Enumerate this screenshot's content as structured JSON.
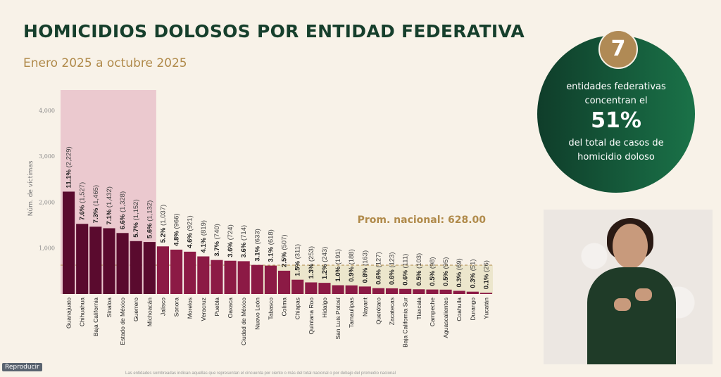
{
  "header": {
    "title": "HOMICIDIOS DOLOSOS POR ENTIDAD FEDERATIVA",
    "subtitle": "Enero 2025 a octubre 2025"
  },
  "chart_data": {
    "type": "bar",
    "ylabel": "Núm. de víctimas",
    "ylim": [
      0,
      4000
    ],
    "yticks": [
      "1,000",
      "2,000",
      "3,000",
      "4,000"
    ],
    "ytick_values": [
      1000,
      2000,
      3000,
      4000
    ],
    "average": {
      "label": "Prom. nacional: 628.00",
      "value": 628
    },
    "highlight_count": 7,
    "categories": [
      "Guanajuato",
      "Chihuahua",
      "Baja California",
      "Sinaloa",
      "Estado de México",
      "Guerrero",
      "Michoacán",
      "Jalisco",
      "Sonora",
      "Morelos",
      "Veracruz",
      "Puebla",
      "Oaxaca",
      "Ciudad de México",
      "Nuevo León",
      "Tabasco",
      "Colima",
      "Chiapas",
      "Quintana Roo",
      "Hidalgo",
      "San Luis Potosí",
      "Tamaulipas",
      "Nayarit",
      "Querétaro",
      "Zacatecas",
      "Baja California Sur",
      "Tlaxcala",
      "Campeche",
      "Aguascalientes",
      "Coahuila",
      "Durango",
      "Yucatán"
    ],
    "values": [
      2229,
      1527,
      1465,
      1432,
      1328,
      1152,
      1132,
      1037,
      966,
      921,
      819,
      740,
      724,
      714,
      633,
      618,
      507,
      311,
      253,
      243,
      191,
      188,
      163,
      127,
      123,
      111,
      103,
      98,
      95,
      69,
      51,
      26
    ],
    "percents": [
      "11.1%",
      "7.6%",
      "7.3%",
      "7.1%",
      "6.6%",
      "5.7%",
      "5.6%",
      "5.2%",
      "4.8%",
      "4.6%",
      "4.1%",
      "3.7%",
      "3.6%",
      "3.6%",
      "3.1%",
      "3.1%",
      "2.5%",
      "1.5%",
      "1.3%",
      "1.2%",
      "1.0%",
      "0.9%",
      "0.8%",
      "0.6%",
      "0.6%",
      "0.6%",
      "0.5%",
      "0.5%",
      "0.5%",
      "0.3%",
      "0.3%",
      "0.1%"
    ],
    "value_labels": [
      "(2,229)",
      "(1,527)",
      "(1,465)",
      "(1,432)",
      "(1,328)",
      "(1,152)",
      "(1,132)",
      "(1,037)",
      "(966)",
      "(921)",
      "(819)",
      "(740)",
      "(724)",
      "(714)",
      "(633)",
      "(618)",
      "(507)",
      "(311)",
      "(253)",
      "(243)",
      "(191)",
      "(188)",
      "(163)",
      "(127)",
      "(123)",
      "(111)",
      "(103)",
      "(98)",
      "(95)",
      "(69)",
      "(51)",
      "(26)"
    ],
    "colors": {
      "highlight": "#5a0a2e",
      "normal": "#8c1a45",
      "highlight_bg": "#ebc9cf",
      "below_avg_bg": "#ece6cc",
      "avg_line": "#b08a4a"
    }
  },
  "callout": {
    "number": "7",
    "line1": "entidades federativas",
    "line2": "concentran el",
    "big": "51%",
    "line3": "del total de casos de",
    "line4": "homicidio doloso"
  },
  "video": {
    "button": "Reproducir"
  },
  "footnote": "Las entidades sombreadas indican aquellas que representan el cincuenta por ciento o más del total nacional o por debajo del promedio nacional"
}
